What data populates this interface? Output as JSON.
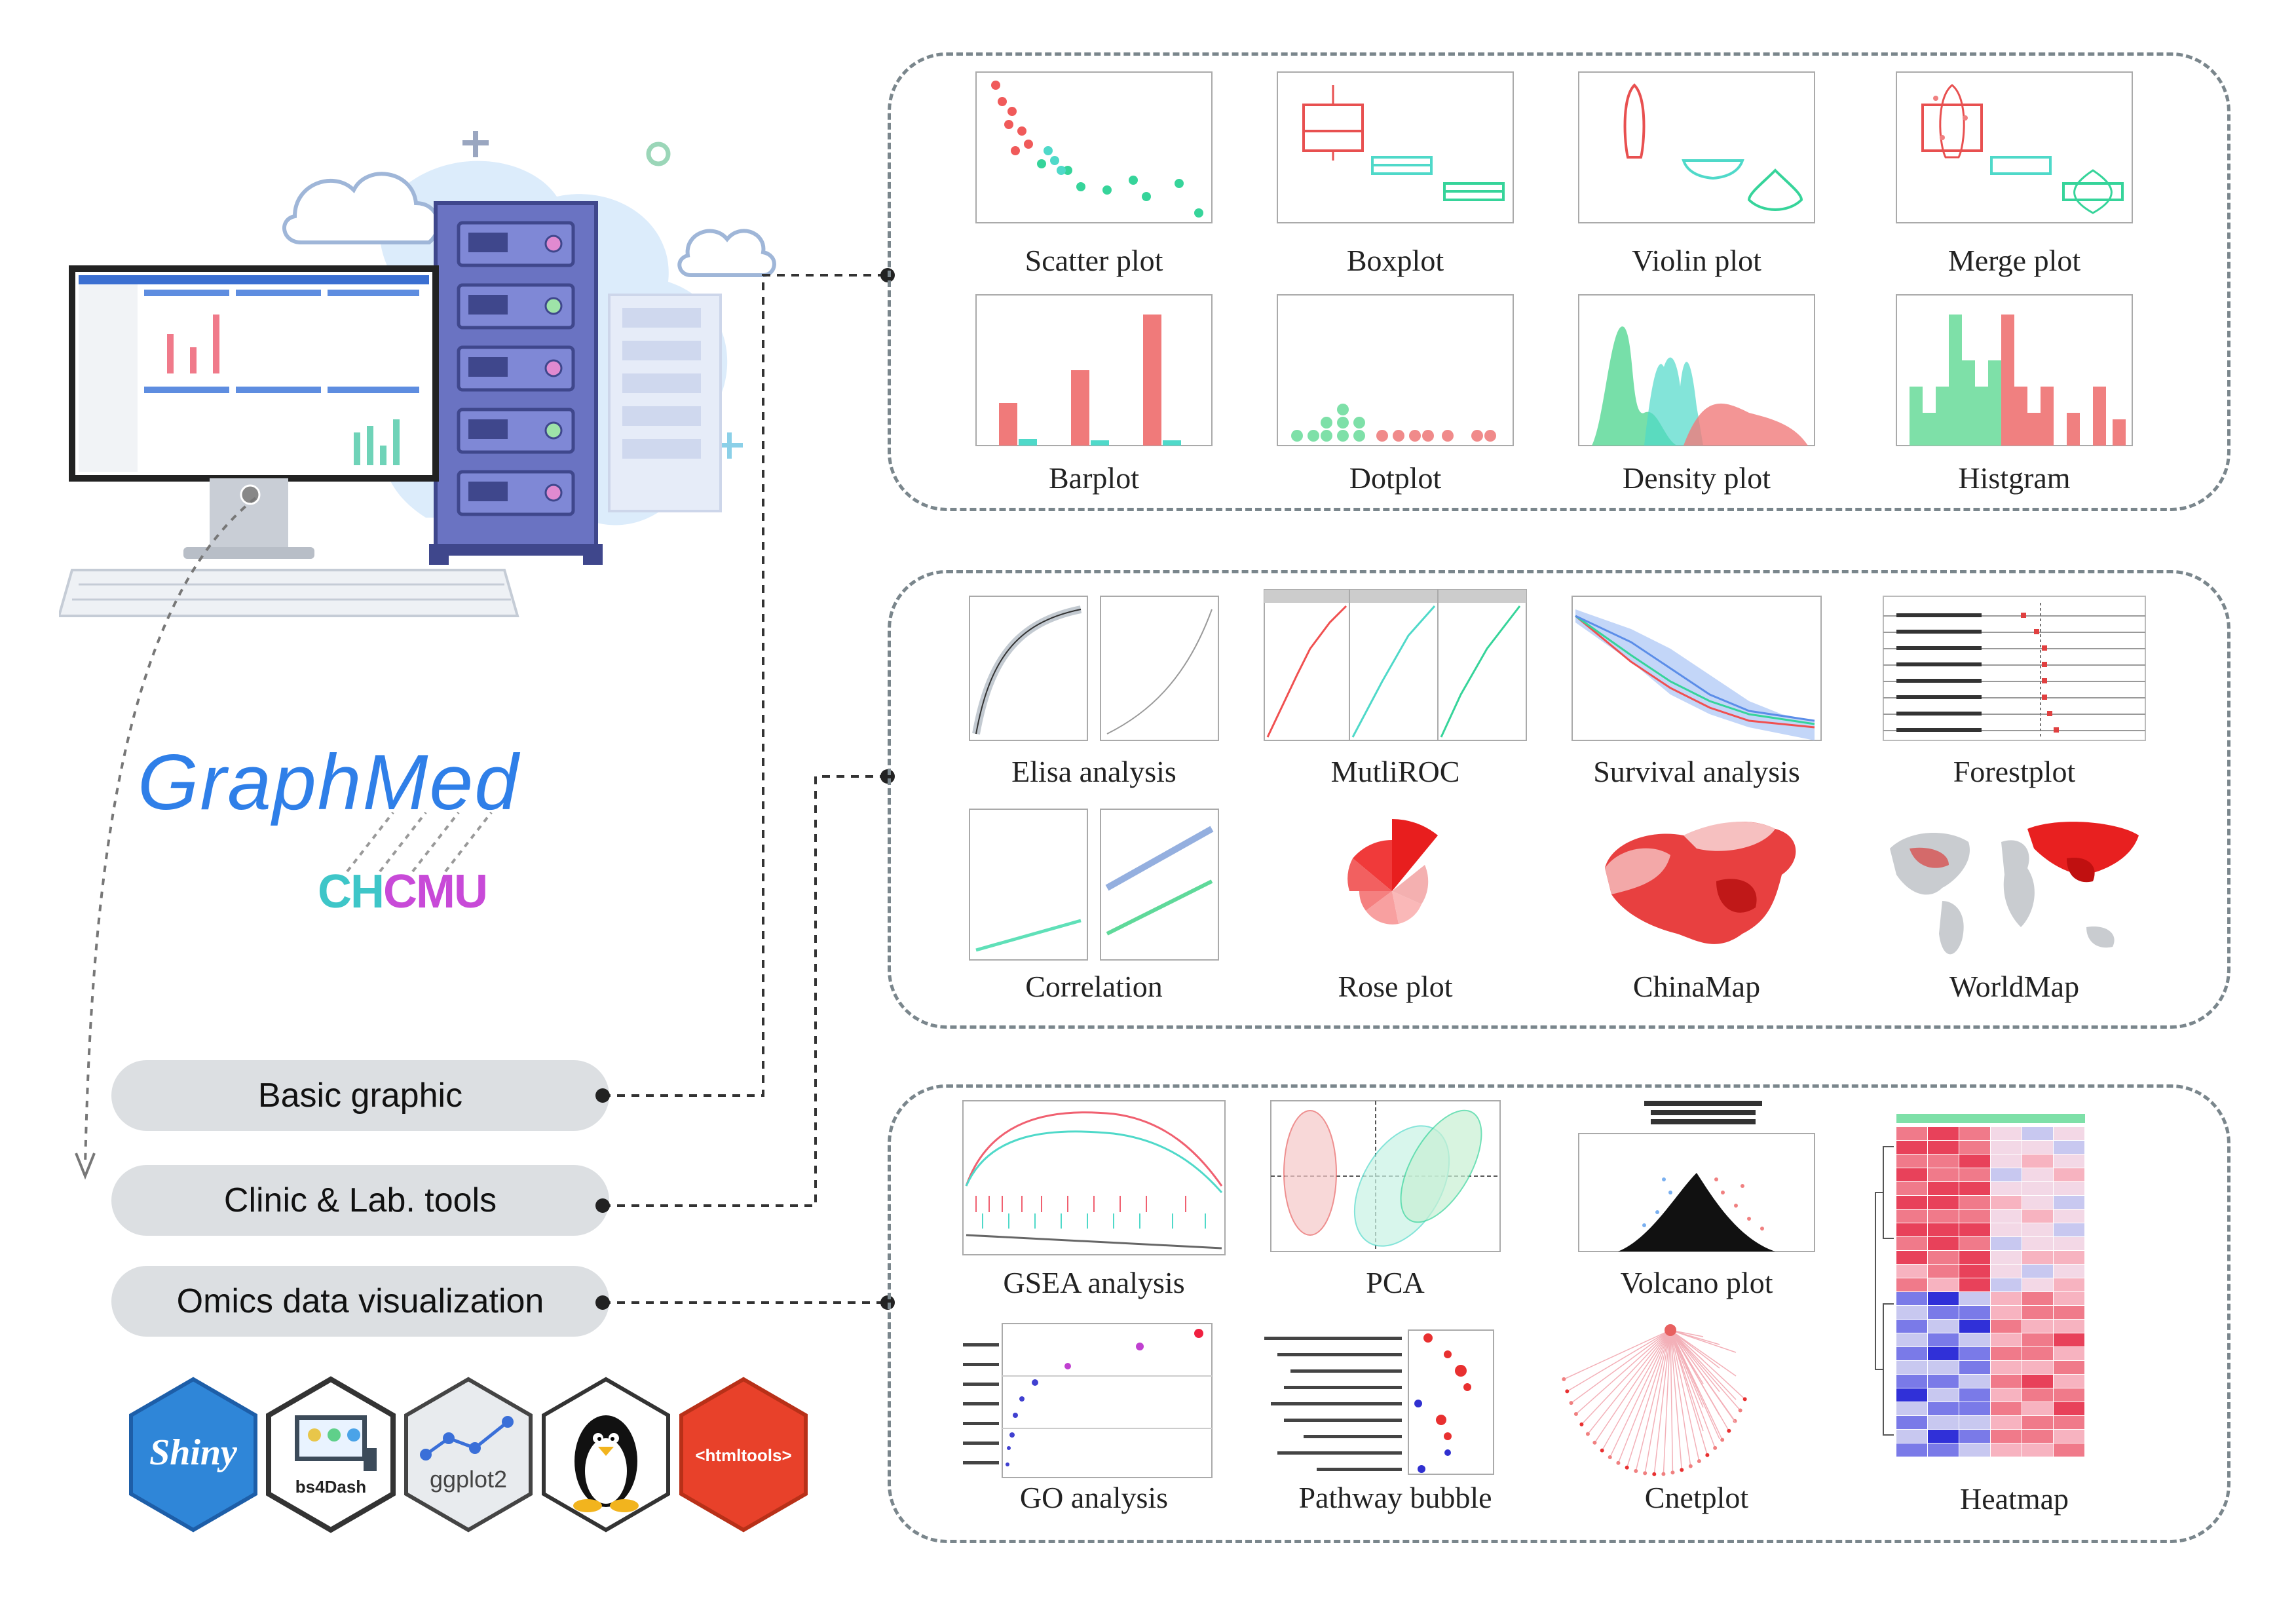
{
  "app": {
    "name": "GraphMed",
    "lab_logo_part1": "CH",
    "lab_logo_part2": "CMU"
  },
  "menu": {
    "basic": "Basic graphic",
    "clinic": "Clinic & Lab. tools",
    "omics": "Omics data visualization"
  },
  "panels": {
    "basic": [
      {
        "label": "Scatter plot",
        "icon": "scatter-plot-thumbnail"
      },
      {
        "label": "Boxplot",
        "icon": "boxplot-thumbnail"
      },
      {
        "label": "Violin plot",
        "icon": "violin-plot-thumbnail"
      },
      {
        "label": "Merge plot",
        "icon": "merge-plot-thumbnail"
      },
      {
        "label": "Barplot",
        "icon": "barplot-thumbnail"
      },
      {
        "label": "Dotplot",
        "icon": "dotplot-thumbnail"
      },
      {
        "label": "Density plot",
        "icon": "density-plot-thumbnail"
      },
      {
        "label": "Histgram",
        "icon": "histogram-thumbnail"
      }
    ],
    "clinic": [
      {
        "label": "Elisa analysis",
        "icon": "elisa-thumbnail"
      },
      {
        "label": "MutliROC",
        "icon": "roc-thumbnail"
      },
      {
        "label": "Survival analysis",
        "icon": "survival-thumbnail"
      },
      {
        "label": "Forestplot",
        "icon": "forestplot-thumbnail"
      },
      {
        "label": "Correlation",
        "icon": "correlation-thumbnail"
      },
      {
        "label": "Rose plot",
        "icon": "rose-plot-thumbnail"
      },
      {
        "label": "ChinaMap",
        "icon": "china-map-thumbnail"
      },
      {
        "label": "WorldMap",
        "icon": "world-map-thumbnail"
      }
    ],
    "omics": [
      {
        "label": "GSEA analysis",
        "icon": "gsea-thumbnail"
      },
      {
        "label": "PCA",
        "icon": "pca-thumbnail"
      },
      {
        "label": "Volcano plot",
        "icon": "volcano-thumbnail"
      },
      {
        "label": "Heatmap",
        "icon": "heatmap-thumbnail"
      },
      {
        "label": "GO analysis",
        "icon": "go-analysis-thumbnail"
      },
      {
        "label": "Pathway bubble",
        "icon": "pathway-bubble-thumbnail"
      },
      {
        "label": "Cnetplot",
        "icon": "cnetplot-thumbnail"
      }
    ]
  },
  "logos": {
    "shiny": "Shiny",
    "bs4dash": "bs4Dash",
    "ggplot2": "ggplot2",
    "htmltools": "<htmltools>"
  },
  "colors": {
    "accent_blue": "#2f7fe8",
    "red": "#f07070",
    "green": "#3ed08a",
    "teal": "#4fd9c9",
    "server": "#5b64b5",
    "panel_border": "#7a868c"
  }
}
